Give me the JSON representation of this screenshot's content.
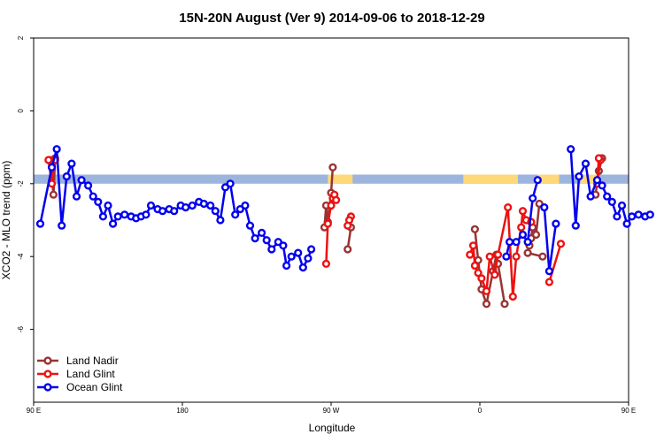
{
  "chart_data": {
    "type": "line",
    "title": "15N-20N August (Ver 9)   2014-09-06 to 2018-12-29",
    "xlabel": "Longitude",
    "ylabel": "XCO2 - MLO trend (ppm)",
    "xlim": [
      90,
      450
    ],
    "ylim": [
      -8,
      2
    ],
    "x_ticks": [
      {
        "value": 90,
        "label": "90 E"
      },
      {
        "value": 180,
        "label": "180"
      },
      {
        "value": 270,
        "label": "90 W"
      },
      {
        "value": 360,
        "label": "0"
      },
      {
        "value": 450,
        "label": "90 E"
      }
    ],
    "y_ticks": [
      {
        "value": 2,
        "label": "2"
      },
      {
        "value": 0,
        "label": "0"
      },
      {
        "value": -2,
        "label": "-2"
      },
      {
        "value": -4,
        "label": "-4"
      },
      {
        "value": -6,
        "label": "-6"
      }
    ],
    "background_band": {
      "y_range": [
        -2.0,
        -1.75
      ],
      "base_color": "#9db4dc",
      "land_color": "#ffd979",
      "land_segments": [
        [
          268,
          283
        ],
        [
          350,
          383
        ],
        [
          395,
          408
        ],
        [
          421,
          431
        ]
      ]
    },
    "legend": {
      "position": "bottom-left"
    },
    "series": [
      {
        "name": "Land Nadir",
        "color": "#993333",
        "segments": [
          [
            [
              100,
              -1.35
            ],
            [
              102,
              -2.3
            ],
            [
              103,
              -1.3
            ]
          ],
          [
            [
              271,
              -1.55
            ],
            [
              270,
              -2.25
            ],
            [
              268,
              -3.05
            ],
            [
              267,
              -2.6
            ],
            [
              266,
              -3.2
            ]
          ],
          [
            [
              282,
              -3.2
            ],
            [
              280,
              -3.8
            ]
          ],
          [
            [
              357,
              -3.25
            ],
            [
              359,
              -4.1
            ],
            [
              361,
              -4.9
            ],
            [
              364,
              -5.3
            ],
            [
              368,
              -4.4
            ],
            [
              370,
              -3.95
            ],
            [
              371,
              -4.2
            ],
            [
              375,
              -5.3
            ]
          ],
          [
            [
              396,
              -2.55
            ],
            [
              394,
              -3.4
            ],
            [
              392,
              -3.2
            ],
            [
              391,
              -3.5
            ],
            [
              390,
              -3.7
            ],
            [
              389,
              -3.9
            ],
            [
              398,
              -4.0
            ]
          ],
          [
            [
              434,
              -1.3
            ],
            [
              432,
              -1.65
            ],
            [
              430,
              -2.3
            ]
          ]
        ]
      },
      {
        "name": "Land Glint",
        "color": "#ee1111",
        "segments": [
          [
            [
              99,
              -1.35
            ],
            [
              101,
              -2.0
            ],
            [
              103,
              -1.35
            ]
          ],
          [
            [
              267,
              -4.2
            ],
            [
              268,
              -3.1
            ],
            [
              270,
              -2.6
            ],
            [
              271,
              -2.4
            ],
            [
              272,
              -2.3
            ],
            [
              273,
              -2.45
            ]
          ],
          [
            [
              282,
              -2.9
            ],
            [
              281,
              -3.0
            ],
            [
              280,
              -3.15
            ]
          ],
          [
            [
              354,
              -3.95
            ],
            [
              356,
              -3.7
            ],
            [
              357,
              -4.25
            ],
            [
              359,
              -4.45
            ],
            [
              361,
              -4.6
            ],
            [
              364,
              -4.95
            ],
            [
              366,
              -4.0
            ],
            [
              369,
              -4.5
            ],
            [
              371,
              -3.95
            ],
            [
              377,
              -2.65
            ],
            [
              380,
              -5.1
            ],
            [
              382,
              -4.0
            ],
            [
              385,
              -3.2
            ],
            [
              386,
              -2.75
            ],
            [
              388,
              -3.0
            ],
            [
              391,
              -3.05
            ]
          ],
          [
            [
              402,
              -4.7
            ],
            [
              409,
              -3.65
            ]
          ],
          [
            [
              433,
              -1.35
            ],
            [
              431,
              -2.0
            ],
            [
              432,
              -1.3
            ]
          ]
        ]
      },
      {
        "name": "Ocean Glint",
        "color": "#0000ee",
        "segments": [
          [
            [
              94,
              -3.1
            ],
            [
              101,
              -1.55
            ],
            [
              104,
              -1.05
            ],
            [
              107,
              -3.15
            ],
            [
              110,
              -1.8
            ],
            [
              113,
              -1.45
            ],
            [
              116,
              -2.35
            ],
            [
              119,
              -1.9
            ],
            [
              123,
              -2.05
            ],
            [
              126,
              -2.35
            ],
            [
              129,
              -2.5
            ],
            [
              132,
              -2.9
            ],
            [
              135,
              -2.6
            ],
            [
              138,
              -3.1
            ],
            [
              141,
              -2.9
            ],
            [
              145,
              -2.85
            ],
            [
              149,
              -2.9
            ],
            [
              152,
              -2.95
            ],
            [
              155,
              -2.9
            ],
            [
              158,
              -2.85
            ],
            [
              161,
              -2.6
            ],
            [
              165,
              -2.7
            ],
            [
              168,
              -2.75
            ],
            [
              172,
              -2.7
            ],
            [
              175,
              -2.75
            ],
            [
              179,
              -2.6
            ],
            [
              182,
              -2.65
            ],
            [
              186,
              -2.6
            ],
            [
              190,
              -2.5
            ],
            [
              193,
              -2.55
            ],
            [
              197,
              -2.6
            ],
            [
              200,
              -2.75
            ],
            [
              203,
              -3.0
            ],
            [
              206,
              -2.1
            ],
            [
              209,
              -2.0
            ],
            [
              212,
              -2.85
            ],
            [
              215,
              -2.7
            ],
            [
              218,
              -2.6
            ],
            [
              221,
              -3.15
            ],
            [
              224,
              -3.5
            ],
            [
              228,
              -3.35
            ],
            [
              231,
              -3.55
            ],
            [
              234,
              -3.8
            ],
            [
              238,
              -3.6
            ],
            [
              241,
              -3.7
            ],
            [
              243,
              -4.25
            ],
            [
              246,
              -4.0
            ],
            [
              250,
              -3.9
            ],
            [
              253,
              -4.3
            ],
            [
              256,
              -4.05
            ],
            [
              258,
              -3.8
            ]
          ],
          [
            [
              376,
              -4.0
            ],
            [
              378,
              -3.6
            ],
            [
              382,
              -3.6
            ],
            [
              386,
              -3.4
            ],
            [
              389,
              -3.6
            ],
            [
              392,
              -2.4
            ],
            [
              395,
              -1.9
            ]
          ],
          [
            [
              399,
              -2.65
            ],
            [
              402,
              -4.4
            ],
            [
              406,
              -3.1
            ]
          ],
          [
            [
              415,
              -1.05
            ],
            [
              418,
              -3.15
            ],
            [
              420,
              -1.8
            ],
            [
              424,
              -1.45
            ],
            [
              427,
              -2.35
            ],
            [
              431,
              -1.9
            ],
            [
              434,
              -2.05
            ],
            [
              437,
              -2.35
            ],
            [
              440,
              -2.5
            ],
            [
              443,
              -2.9
            ],
            [
              446,
              -2.6
            ],
            [
              449,
              -3.1
            ],
            [
              452,
              -2.9
            ],
            [
              456,
              -2.85
            ],
            [
              460,
              -2.9
            ],
            [
              463,
              -2.85
            ]
          ]
        ]
      }
    ]
  }
}
